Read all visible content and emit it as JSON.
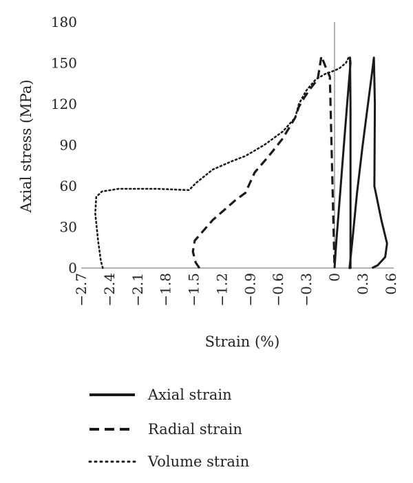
{
  "chart_data": {
    "type": "line",
    "title": "",
    "xlabel": "Strain (%)",
    "ylabel": "Axial stress (MPa)",
    "xlim": [
      -2.7,
      0.6
    ],
    "ylim": [
      0,
      180
    ],
    "x_ticks": [
      "−2.7",
      "−2.4",
      "−2.1",
      "−1.8",
      "−1.5",
      "−1.2",
      "−0.9",
      "−0.6",
      "−0.3",
      "0",
      "0.3",
      "0.6"
    ],
    "y_ticks": [
      "0",
      "30",
      "60",
      "90",
      "120",
      "150",
      "180"
    ],
    "grid": false,
    "legend_position": "bottom",
    "series": [
      {
        "name": "Axial strain",
        "style": "solid",
        "color": "#1a1a1a",
        "points": [
          [
            0.0,
            0
          ],
          [
            0.02,
            20
          ],
          [
            0.06,
            55
          ],
          [
            0.1,
            90
          ],
          [
            0.14,
            125
          ],
          [
            0.17,
            150
          ],
          [
            0.165,
            154
          ],
          [
            0.17,
            120
          ],
          [
            0.17,
            0
          ],
          [
            0.16,
            0
          ],
          [
            0.19,
            20
          ],
          [
            0.24,
            55
          ],
          [
            0.3,
            90
          ],
          [
            0.36,
            122
          ],
          [
            0.4,
            143
          ],
          [
            0.42,
            154
          ],
          [
            0.43,
            120
          ],
          [
            0.425,
            60
          ],
          [
            0.5,
            35
          ],
          [
            0.56,
            18
          ],
          [
            0.54,
            8
          ],
          [
            0.46,
            2
          ],
          [
            0.4,
            0
          ]
        ]
      },
      {
        "name": "Radial strain",
        "style": "dashed",
        "color": "#1a1a1a",
        "points": [
          [
            -1.44,
            0
          ],
          [
            -1.48,
            4
          ],
          [
            -1.51,
            12
          ],
          [
            -1.49,
            20
          ],
          [
            -1.3,
            35
          ],
          [
            -1.05,
            50
          ],
          [
            -0.95,
            55
          ],
          [
            -0.85,
            70
          ],
          [
            -0.7,
            82
          ],
          [
            -0.55,
            95
          ],
          [
            -0.42,
            110
          ],
          [
            -0.38,
            118
          ],
          [
            -0.32,
            125
          ],
          [
            -0.25,
            132
          ],
          [
            -0.18,
            138
          ],
          [
            -0.14,
            155
          ],
          [
            -0.1,
            148
          ],
          [
            -0.05,
            140
          ],
          [
            0.0,
            0
          ]
        ]
      },
      {
        "name": "Volume strain",
        "style": "dotted",
        "color": "#1a1a1a",
        "points": [
          [
            -2.47,
            0
          ],
          [
            -2.49,
            5
          ],
          [
            -2.52,
            20
          ],
          [
            -2.55,
            40
          ],
          [
            -2.54,
            52
          ],
          [
            -2.48,
            56
          ],
          [
            -2.3,
            58
          ],
          [
            -1.9,
            58
          ],
          [
            -1.55,
            57
          ],
          [
            -1.48,
            62
          ],
          [
            -1.3,
            72
          ],
          [
            -1.1,
            78
          ],
          [
            -0.95,
            82
          ],
          [
            -0.75,
            90
          ],
          [
            -0.55,
            100
          ],
          [
            -0.42,
            110
          ],
          [
            -0.38,
            120
          ],
          [
            -0.3,
            130
          ],
          [
            -0.2,
            138
          ],
          [
            -0.1,
            142
          ],
          [
            -0.02,
            144
          ],
          [
            0.05,
            146
          ],
          [
            0.12,
            150
          ],
          [
            0.15,
            154
          ]
        ]
      }
    ]
  }
}
